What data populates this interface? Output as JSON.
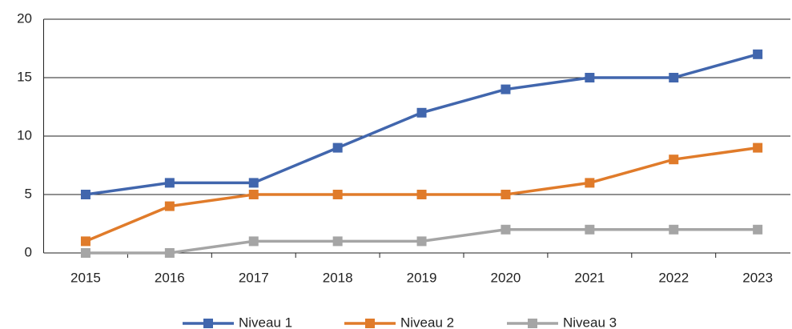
{
  "chart_data": {
    "type": "line",
    "categories": [
      "2015",
      "2016",
      "2017",
      "2018",
      "2019",
      "2020",
      "2021",
      "2022",
      "2023"
    ],
    "series": [
      {
        "name": "Niveau 1",
        "color": "#4166ad",
        "values": [
          5,
          6,
          6,
          9,
          12,
          14,
          15,
          15,
          17
        ]
      },
      {
        "name": "Niveau 2",
        "color": "#e07b2a",
        "values": [
          1,
          4,
          5,
          5,
          5,
          5,
          6,
          8,
          9
        ]
      },
      {
        "name": "Niveau 3",
        "color": "#a5a5a5",
        "values": [
          0,
          0,
          1,
          1,
          1,
          2,
          2,
          2,
          2
        ]
      }
    ],
    "ylim": [
      0,
      20
    ],
    "yticks": [
      0,
      5,
      10,
      15,
      20
    ],
    "grid": true,
    "legend": "bottom"
  }
}
